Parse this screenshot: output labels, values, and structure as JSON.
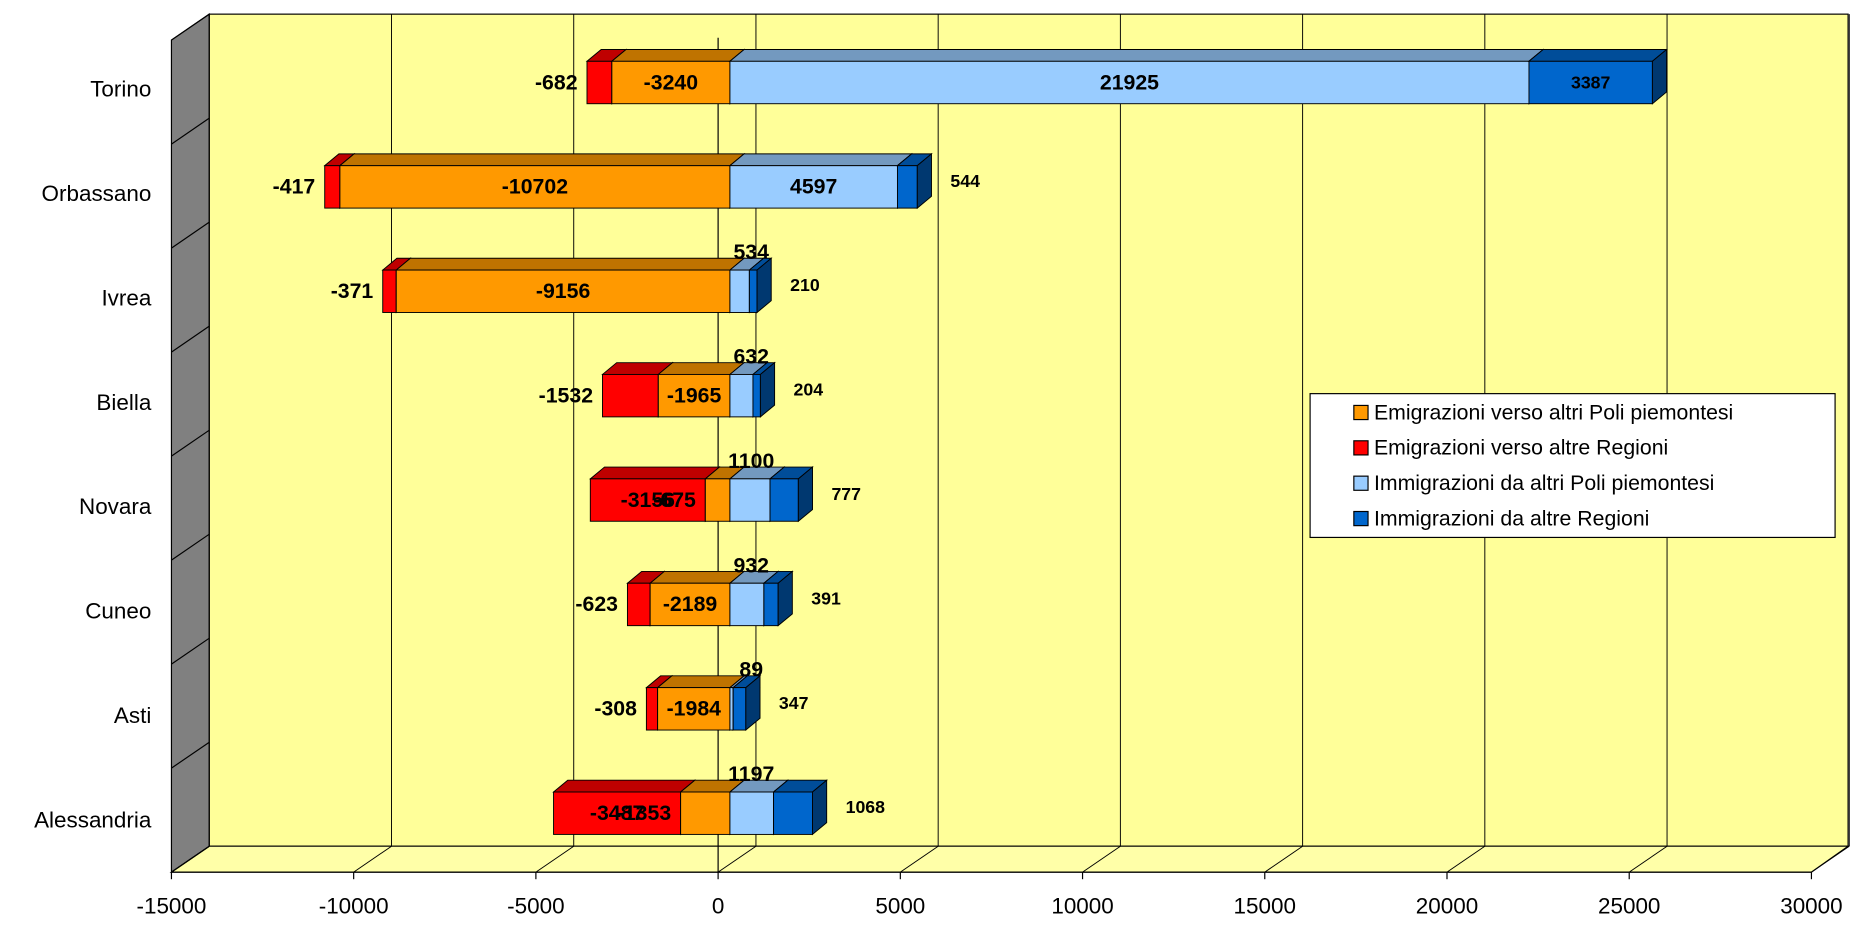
{
  "chart_data": {
    "type": "bar",
    "orientation": "horizontal",
    "stacked": true,
    "categories": [
      "Torino",
      "Orbassano",
      "Ivrea",
      "Biella",
      "Novara",
      "Cuneo",
      "Asti",
      "Alessandria"
    ],
    "series": [
      {
        "name": "Emigrazioni verso altri Poli piemontesi",
        "color": "#FF9900",
        "values": [
          -3240,
          -10702,
          -9156,
          -1965,
          -675,
          -2189,
          -1984,
          -1353
        ]
      },
      {
        "name": "Emigrazioni verso altre Regioni",
        "color": "#FF0000",
        "values": [
          -682,
          -417,
          -371,
          -1532,
          -3156,
          -623,
          -308,
          -3487
        ]
      },
      {
        "name": "Immigrazioni da altri Poli piemontesi",
        "color": "#99CCFF",
        "values": [
          21925,
          4597,
          534,
          632,
          1100,
          932,
          89,
          1197
        ]
      },
      {
        "name": "Immigrazioni da altre Regioni",
        "color": "#0066CC",
        "values": [
          3387,
          544,
          210,
          204,
          777,
          391,
          347,
          1068
        ]
      }
    ],
    "xlim": [
      -15000,
      30000
    ],
    "xticks": [
      -15000,
      -10000,
      -5000,
      0,
      5000,
      10000,
      15000,
      20000,
      25000,
      30000
    ],
    "grid": true,
    "legend": "right"
  }
}
